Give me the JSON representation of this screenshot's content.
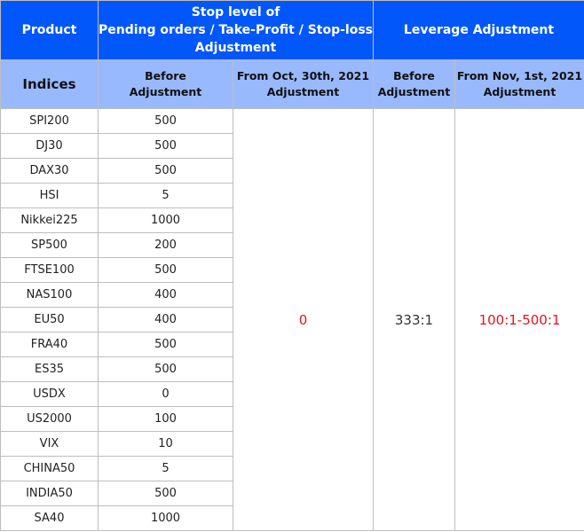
{
  "header": {
    "product": "Product",
    "stop_level": [
      "Stop level of",
      "Pending orders / Take-Profit / Stop-loss",
      "Adjustment"
    ],
    "leverage": "Leverage Adjustment"
  },
  "subheader": {
    "indices": "Indices",
    "stop_before": [
      "Before",
      "Adjustment"
    ],
    "stop_after": [
      "From Oct, 30th, 2021",
      "Adjustment"
    ],
    "lev_before": [
      "Before",
      "Adjustment"
    ],
    "lev_after": [
      "From Nov, 1st, 2021",
      "Adjustment"
    ]
  },
  "rows": [
    {
      "index": "SPI200",
      "before": "500"
    },
    {
      "index": "DJ30",
      "before": "500"
    },
    {
      "index": "DAX30",
      "before": "500"
    },
    {
      "index": "HSI",
      "before": "5"
    },
    {
      "index": "Nikkei225",
      "before": "1000"
    },
    {
      "index": "SP500",
      "before": "200"
    },
    {
      "index": "FTSE100",
      "before": "500"
    },
    {
      "index": "NAS100",
      "before": "400"
    },
    {
      "index": "EU50",
      "before": "400"
    },
    {
      "index": "FRA40",
      "before": "500"
    },
    {
      "index": "ES35",
      "before": "500"
    },
    {
      "index": "USDX",
      "before": "0"
    },
    {
      "index": "US2000",
      "before": "100"
    },
    {
      "index": "VIX",
      "before": "10"
    },
    {
      "index": "CHINA50",
      "before": "5"
    },
    {
      "index": "INDIA50",
      "before": "500"
    },
    {
      "index": "SA40",
      "before": "1000"
    }
  ],
  "merged": {
    "stop_after": "0",
    "lev_before": "333:1",
    "lev_after": "100:1-500:1"
  },
  "colors": {
    "header": "#0257fb",
    "subheader": "#99b9fe",
    "highlight": "#e8121c"
  }
}
